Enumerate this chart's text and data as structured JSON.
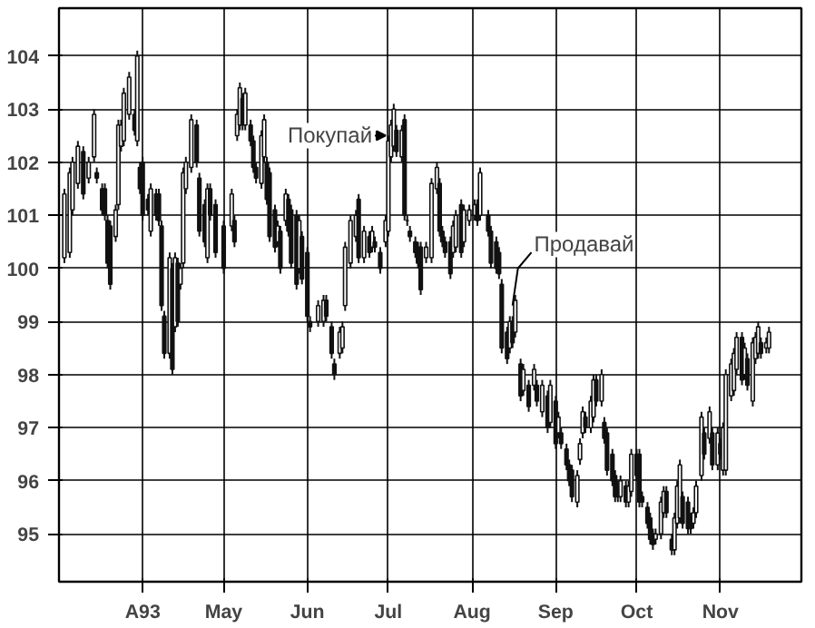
{
  "chart_data": {
    "type": "candlestick",
    "x": [
      "1993-03-03",
      "1993-03-05",
      "1993-03-06",
      "1993-03-08",
      "1993-03-10",
      "1993-03-12",
      "1993-03-14",
      "1993-03-15",
      "1993-03-17",
      "1993-03-18",
      "1993-03-19",
      "1993-03-20",
      "1993-03-22",
      "1993-03-23",
      "1993-03-24",
      "1993-03-25",
      "1993-03-27",
      "1993-03-29",
      "1993-03-30",
      "1993-03-31",
      "1993-04-01",
      "1993-04-03",
      "1993-04-04",
      "1993-04-06",
      "1993-04-07",
      "1993-04-08",
      "1993-04-09",
      "1993-04-11",
      "1993-04-12",
      "1993-04-13",
      "1993-04-14",
      "1993-04-15",
      "1993-04-16",
      "1993-04-17",
      "1993-04-19",
      "1993-04-21",
      "1993-04-22",
      "1993-04-24",
      "1993-04-25",
      "1993-04-26",
      "1993-04-28",
      "1993-05-01",
      "1993-05-04",
      "1993-05-05",
      "1993-05-06",
      "1993-05-07",
      "1993-05-08",
      "1993-05-09",
      "1993-05-11",
      "1993-05-12",
      "1993-05-13",
      "1993-05-15",
      "1993-05-16",
      "1993-05-17",
      "1993-05-18",
      "1993-05-20",
      "1993-05-21",
      "1993-05-22",
      "1993-05-24",
      "1993-05-25",
      "1993-05-26",
      "1993-05-28",
      "1993-05-29",
      "1993-05-30",
      "1993-06-01",
      "1993-06-02",
      "1993-06-05",
      "1993-06-07",
      "1993-06-08",
      "1993-06-10",
      "1993-06-11",
      "1993-06-13",
      "1993-06-14",
      "1993-06-15",
      "1993-06-17",
      "1993-06-19",
      "1993-06-20",
      "1993-06-22",
      "1993-06-24",
      "1993-06-25",
      "1993-06-26",
      "1993-06-28",
      "1993-06-30",
      "1993-07-01",
      "1993-07-02",
      "1993-07-03",
      "1993-07-04",
      "1993-07-06",
      "1993-07-07",
      "1993-07-08",
      "1993-07-09",
      "1993-07-11",
      "1993-07-12",
      "1993-07-13",
      "1993-07-15",
      "1993-07-17",
      "1993-07-19",
      "1993-07-20",
      "1993-07-21",
      "1993-07-22",
      "1993-07-24",
      "1993-07-25",
      "1993-07-26",
      "1993-07-28",
      "1993-07-29",
      "1993-07-31",
      "1993-08-02",
      "1993-08-03",
      "1993-08-04",
      "1993-08-07",
      "1993-08-08",
      "1993-08-10",
      "1993-08-11",
      "1993-08-12",
      "1993-08-14",
      "1993-08-15",
      "1993-08-16",
      "1993-08-17",
      "1993-08-19",
      "1993-08-20",
      "1993-08-22",
      "1993-08-24",
      "1993-08-25",
      "1993-08-27",
      "1993-08-29",
      "1993-08-30",
      "1993-09-01",
      "1993-09-02",
      "1993-09-03",
      "1993-09-05",
      "1993-09-06",
      "1993-09-07",
      "1993-09-09",
      "1993-09-10",
      "1993-09-11",
      "1993-09-12",
      "1993-09-14",
      "1993-09-15",
      "1993-09-16",
      "1993-09-18",
      "1993-09-19",
      "1993-09-20",
      "1993-09-22",
      "1993-09-23",
      "1993-09-24",
      "1993-09-25",
      "1993-09-27",
      "1993-09-28",
      "1993-09-29",
      "1993-10-01",
      "1993-10-02",
      "1993-10-03",
      "1993-10-05",
      "1993-10-06",
      "1993-10-07",
      "1993-10-08",
      "1993-10-10",
      "1993-10-11",
      "1993-10-12",
      "1993-10-14",
      "1993-10-15",
      "1993-10-16",
      "1993-10-17",
      "1993-10-18",
      "1993-10-20",
      "1993-10-21",
      "1993-10-22",
      "1993-10-23",
      "1993-10-25",
      "1993-10-26",
      "1993-10-28",
      "1993-10-29",
      "1993-10-31",
      "1993-11-01",
      "1993-11-02",
      "1993-11-03",
      "1993-11-05",
      "1993-11-06",
      "1993-11-07",
      "1993-11-09",
      "1993-11-10",
      "1993-11-11",
      "1993-11-13",
      "1993-11-14",
      "1993-11-15",
      "1993-11-16",
      "1993-11-18",
      "1993-11-19"
    ],
    "ohlc": [
      [
        100.2,
        101.5,
        100.1,
        101.4
      ],
      [
        100.3,
        101.9,
        100.2,
        101.8
      ],
      [
        101.1,
        102.1,
        101.0,
        102.0
      ],
      [
        101.6,
        102.4,
        101.5,
        102.3
      ],
      [
        102.2,
        102.3,
        101.3,
        101.4
      ],
      [
        101.7,
        102.1,
        101.6,
        102.0
      ],
      [
        102.1,
        103.0,
        102.0,
        102.9
      ],
      [
        101.8,
        101.9,
        101.6,
        101.7
      ],
      [
        101.5,
        101.6,
        101.0,
        101.1
      ],
      [
        101.5,
        101.6,
        100.9,
        101.0
      ],
      [
        100.9,
        101.0,
        100.0,
        100.1
      ],
      [
        100.8,
        100.9,
        99.6,
        99.7
      ],
      [
        100.6,
        101.2,
        100.5,
        101.1
      ],
      [
        101.2,
        102.8,
        101.1,
        102.7
      ],
      [
        102.3,
        102.8,
        102.2,
        102.7
      ],
      [
        102.4,
        103.4,
        102.3,
        103.3
      ],
      [
        102.9,
        103.7,
        102.8,
        103.6
      ],
      [
        102.9,
        103.0,
        102.5,
        102.6
      ],
      [
        102.4,
        104.1,
        102.3,
        104.0
      ],
      [
        101.9,
        102.0,
        101.4,
        101.5
      ],
      [
        102.0,
        102.1,
        100.9,
        101.0
      ],
      [
        101.3,
        101.4,
        101.0,
        101.1
      ],
      [
        100.7,
        101.6,
        100.6,
        101.5
      ],
      [
        101.4,
        101.5,
        100.9,
        101.0
      ],
      [
        101.4,
        101.5,
        100.8,
        100.9
      ],
      [
        100.8,
        100.9,
        99.2,
        99.3
      ],
      [
        99.1,
        99.2,
        98.3,
        98.4
      ],
      [
        98.4,
        100.3,
        98.3,
        100.2
      ],
      [
        100.0,
        100.1,
        98.0,
        98.1
      ],
      [
        98.9,
        100.3,
        98.8,
        100.2
      ],
      [
        100.1,
        100.2,
        98.9,
        99.0
      ],
      [
        99.7,
        100.1,
        99.6,
        100.0
      ],
      [
        100.1,
        101.9,
        100.0,
        101.8
      ],
      [
        101.5,
        102.1,
        101.4,
        102.0
      ],
      [
        101.9,
        102.9,
        101.8,
        102.8
      ],
      [
        102.7,
        102.8,
        101.9,
        102.0
      ],
      [
        101.7,
        101.8,
        100.6,
        100.7
      ],
      [
        101.2,
        101.3,
        100.4,
        100.5
      ],
      [
        100.2,
        101.6,
        100.1,
        101.5
      ],
      [
        101.5,
        101.6,
        100.9,
        101.0
      ],
      [
        101.2,
        101.3,
        100.2,
        100.3
      ],
      [
        100.8,
        100.9,
        99.9,
        100.0
      ],
      [
        100.8,
        101.5,
        100.7,
        101.4
      ],
      [
        100.9,
        101.0,
        100.4,
        100.5
      ],
      [
        102.5,
        103.0,
        102.4,
        102.9
      ],
      [
        102.7,
        103.5,
        102.6,
        103.4
      ],
      [
        103.2,
        103.3,
        102.6,
        102.7
      ],
      [
        102.7,
        103.4,
        102.6,
        103.3
      ],
      [
        102.7,
        102.8,
        102.3,
        102.4
      ],
      [
        102.4,
        102.5,
        101.8,
        101.9
      ],
      [
        101.9,
        102.0,
        101.6,
        101.7
      ],
      [
        101.6,
        102.6,
        101.5,
        102.5
      ],
      [
        102.1,
        102.9,
        102.0,
        102.8
      ],
      [
        102.0,
        102.1,
        101.2,
        101.3
      ],
      [
        101.8,
        101.9,
        100.5,
        100.6
      ],
      [
        101.1,
        101.2,
        100.3,
        100.4
      ],
      [
        100.5,
        100.9,
        100.4,
        100.8
      ],
      [
        100.7,
        100.8,
        99.9,
        100.0
      ],
      [
        100.9,
        101.5,
        100.8,
        101.4
      ],
      [
        101.3,
        101.4,
        100.6,
        100.7
      ],
      [
        101.1,
        101.2,
        100.0,
        100.1
      ],
      [
        101.0,
        101.1,
        99.6,
        99.7
      ],
      [
        100.0,
        101.0,
        99.9,
        100.9
      ],
      [
        100.6,
        100.7,
        99.7,
        99.8
      ],
      [
        100.3,
        100.4,
        99.0,
        99.1
      ],
      [
        99.0,
        99.1,
        98.8,
        98.9
      ],
      [
        99.0,
        99.4,
        98.9,
        99.3
      ],
      [
        99.0,
        99.5,
        98.9,
        99.4
      ],
      [
        99.4,
        99.5,
        99.0,
        99.1
      ],
      [
        98.9,
        99.0,
        98.3,
        98.4
      ],
      [
        98.2,
        98.3,
        97.9,
        98.0
      ],
      [
        98.4,
        98.9,
        98.3,
        98.8
      ],
      [
        98.5,
        99.0,
        98.4,
        98.9
      ],
      [
        99.3,
        100.5,
        99.2,
        100.4
      ],
      [
        100.1,
        101.0,
        100.0,
        100.9
      ],
      [
        100.6,
        101.1,
        100.5,
        101.0
      ],
      [
        101.3,
        101.4,
        100.1,
        100.2
      ],
      [
        100.2,
        100.8,
        100.1,
        100.7
      ],
      [
        100.6,
        100.7,
        100.2,
        100.3
      ],
      [
        100.4,
        100.8,
        100.3,
        100.7
      ],
      [
        100.5,
        100.6,
        100.3,
        100.4
      ],
      [
        100.3,
        100.4,
        99.9,
        100.0
      ],
      [
        100.5,
        101.0,
        100.4,
        100.9
      ],
      [
        100.7,
        102.5,
        100.6,
        102.4
      ],
      [
        102.1,
        102.8,
        102.0,
        102.7
      ],
      [
        102.3,
        103.1,
        102.2,
        103.0
      ],
      [
        102.6,
        102.7,
        102.1,
        102.2
      ],
      [
        102.1,
        102.7,
        102.0,
        102.6
      ],
      [
        102.8,
        102.9,
        100.9,
        101.0
      ],
      [
        100.9,
        101.0,
        100.8,
        100.9
      ],
      [
        100.7,
        100.8,
        100.5,
        100.6
      ],
      [
        100.5,
        100.6,
        100.2,
        100.3
      ],
      [
        100.4,
        100.5,
        100.0,
        100.1
      ],
      [
        100.4,
        100.5,
        99.5,
        99.6
      ],
      [
        100.2,
        100.5,
        100.1,
        100.4
      ],
      [
        100.2,
        101.7,
        100.1,
        101.6
      ],
      [
        101.5,
        102.0,
        101.4,
        101.9
      ],
      [
        101.6,
        101.7,
        100.6,
        100.7
      ],
      [
        100.7,
        100.8,
        100.4,
        100.5
      ],
      [
        100.5,
        100.6,
        100.2,
        100.3
      ],
      [
        100.5,
        100.6,
        99.8,
        99.9
      ],
      [
        100.3,
        100.9,
        100.2,
        100.8
      ],
      [
        100.4,
        101.1,
        100.3,
        101.0
      ],
      [
        101.2,
        101.3,
        100.2,
        100.3
      ],
      [
        100.5,
        101.2,
        100.4,
        101.1
      ],
      [
        100.9,
        101.2,
        100.8,
        101.1
      ],
      [
        101.0,
        101.3,
        100.9,
        101.2
      ],
      [
        101.2,
        101.3,
        100.8,
        100.9
      ],
      [
        101.0,
        101.9,
        100.9,
        101.8
      ],
      [
        101.0,
        101.1,
        100.6,
        100.7
      ],
      [
        100.7,
        100.8,
        100.0,
        100.1
      ],
      [
        100.5,
        100.6,
        99.9,
        100.0
      ],
      [
        100.3,
        100.4,
        99.8,
        99.9
      ],
      [
        99.7,
        99.8,
        98.4,
        98.5
      ],
      [
        98.8,
        98.9,
        98.2,
        98.3
      ],
      [
        98.5,
        99.1,
        98.4,
        99.0
      ],
      [
        99.0,
        99.1,
        98.5,
        98.6
      ],
      [
        98.8,
        99.5,
        98.7,
        99.4
      ],
      [
        98.2,
        98.3,
        97.5,
        97.6
      ],
      [
        97.7,
        98.2,
        97.6,
        98.1
      ],
      [
        97.8,
        97.9,
        97.3,
        97.4
      ],
      [
        97.8,
        98.2,
        97.7,
        98.1
      ],
      [
        97.8,
        97.9,
        97.4,
        97.5
      ],
      [
        97.3,
        97.9,
        97.2,
        97.8
      ],
      [
        97.6,
        97.7,
        96.9,
        97.0
      ],
      [
        97.1,
        97.9,
        97.0,
        97.8
      ],
      [
        97.5,
        97.6,
        96.6,
        96.7
      ],
      [
        96.9,
        97.3,
        96.8,
        97.2
      ],
      [
        96.9,
        97.0,
        96.6,
        96.7
      ],
      [
        96.6,
        96.7,
        96.2,
        96.3
      ],
      [
        96.3,
        96.4,
        95.9,
        96.0
      ],
      [
        96.2,
        96.3,
        95.6,
        95.7
      ],
      [
        95.6,
        96.2,
        95.5,
        96.1
      ],
      [
        96.4,
        96.8,
        96.3,
        96.7
      ],
      [
        96.9,
        97.4,
        96.8,
        97.3
      ],
      [
        97.2,
        97.3,
        96.9,
        97.0
      ],
      [
        97.0,
        97.6,
        96.9,
        97.5
      ],
      [
        97.2,
        98.0,
        97.1,
        97.9
      ],
      [
        97.9,
        98.0,
        97.4,
        97.5
      ],
      [
        97.5,
        98.1,
        97.4,
        98.0
      ],
      [
        97.1,
        97.2,
        96.7,
        96.8
      ],
      [
        96.9,
        97.0,
        96.1,
        96.2
      ],
      [
        96.5,
        96.6,
        95.9,
        96.0
      ],
      [
        96.1,
        96.2,
        95.6,
        95.7
      ],
      [
        95.9,
        96.0,
        95.6,
        95.7
      ],
      [
        95.7,
        96.1,
        95.6,
        96.0
      ],
      [
        95.9,
        96.0,
        95.5,
        95.6
      ],
      [
        95.6,
        96.0,
        95.5,
        95.9
      ],
      [
        95.8,
        96.6,
        95.7,
        96.5
      ],
      [
        96.5,
        96.6,
        96.0,
        96.1
      ],
      [
        96.5,
        96.6,
        95.5,
        95.6
      ],
      [
        95.7,
        95.8,
        95.5,
        95.6
      ],
      [
        95.5,
        95.6,
        95.1,
        95.2
      ],
      [
        95.3,
        95.4,
        94.8,
        94.9
      ],
      [
        95.0,
        95.1,
        94.7,
        94.8
      ],
      [
        94.9,
        95.1,
        94.8,
        95.0
      ],
      [
        95.0,
        95.7,
        94.9,
        95.6
      ],
      [
        95.4,
        95.9,
        95.3,
        95.8
      ],
      [
        95.8,
        95.9,
        95.3,
        95.4
      ],
      [
        94.9,
        95.0,
        94.6,
        94.7
      ],
      [
        94.7,
        95.4,
        94.6,
        95.3
      ],
      [
        95.2,
        96.0,
        95.1,
        95.9
      ],
      [
        95.3,
        96.4,
        95.2,
        96.3
      ],
      [
        95.7,
        95.8,
        95.1,
        95.2
      ],
      [
        95.6,
        95.7,
        95.0,
        95.1
      ],
      [
        95.3,
        95.4,
        95.0,
        95.1
      ],
      [
        95.2,
        95.5,
        95.1,
        95.4
      ],
      [
        95.4,
        96.0,
        95.3,
        95.9
      ],
      [
        96.1,
        97.3,
        96.0,
        97.2
      ],
      [
        96.9,
        97.0,
        96.4,
        96.5
      ],
      [
        96.8,
        97.4,
        96.7,
        97.3
      ],
      [
        96.9,
        97.0,
        96.2,
        96.3
      ],
      [
        96.3,
        97.0,
        96.2,
        96.9
      ],
      [
        96.7,
        96.8,
        96.4,
        96.5
      ],
      [
        96.2,
        97.1,
        96.1,
        97.0
      ],
      [
        96.2,
        98.1,
        96.1,
        98.0
      ],
      [
        97.6,
        98.3,
        97.5,
        98.2
      ],
      [
        97.7,
        98.5,
        97.6,
        98.4
      ],
      [
        98.1,
        98.8,
        98.0,
        98.7
      ],
      [
        98.7,
        98.8,
        97.8,
        97.9
      ],
      [
        98.0,
        98.6,
        97.9,
        98.5
      ],
      [
        98.3,
        98.4,
        97.7,
        97.8
      ],
      [
        97.5,
        98.7,
        97.4,
        98.6
      ],
      [
        98.3,
        98.8,
        98.2,
        98.7
      ],
      [
        98.4,
        99.0,
        98.3,
        98.9
      ],
      [
        98.6,
        98.7,
        98.3,
        98.4
      ],
      [
        98.5,
        98.7,
        98.4,
        98.6
      ],
      [
        98.5,
        98.9,
        98.4,
        98.8
      ]
    ],
    "color": "#111111",
    "xlim": [
      "1993-03-01",
      "1993-12-01"
    ],
    "xticks": [
      {
        "value": "1993-04-01",
        "label": "A93"
      },
      {
        "value": "1993-05-01",
        "label": "May"
      },
      {
        "value": "1993-06-01",
        "label": "Jun"
      },
      {
        "value": "1993-07-01",
        "label": "Jul"
      },
      {
        "value": "1993-08-01",
        "label": "Aug"
      },
      {
        "value": "1993-09-01",
        "label": "Sep"
      },
      {
        "value": "1993-10-01",
        "label": "Oct"
      },
      {
        "value": "1993-11-01",
        "label": "Nov"
      }
    ],
    "ylim": [
      94.1,
      104.9
    ],
    "yticks": [
      95,
      96,
      97,
      98,
      99,
      100,
      101,
      102,
      103,
      104
    ],
    "grid": true,
    "annotations": [
      {
        "text": "Покупай",
        "x": "1993-07-01",
        "y": 102.5
      },
      {
        "text": "Продавай",
        "x": "1993-08-15",
        "y": 99.1
      }
    ]
  }
}
